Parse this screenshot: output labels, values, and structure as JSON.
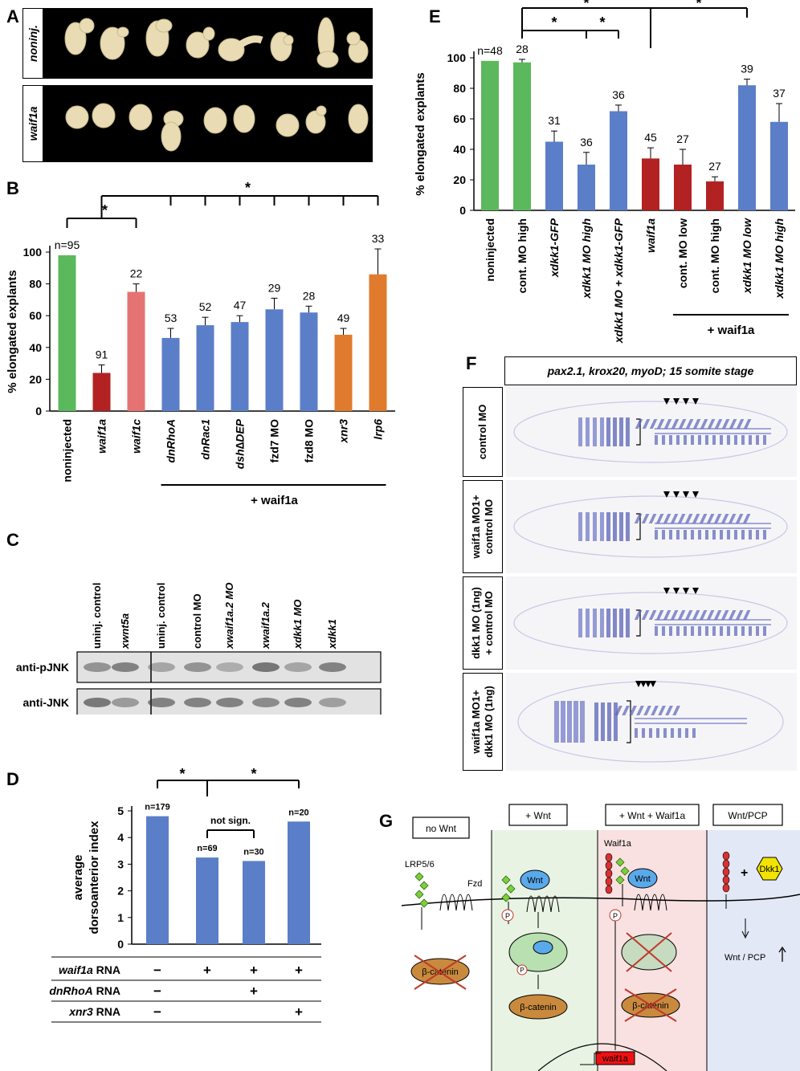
{
  "panels": {
    "A": {
      "label": "A",
      "rows": [
        {
          "label": "noninj."
        },
        {
          "label": "waif1a"
        }
      ]
    },
    "B": {
      "label": "B",
      "chart_data": {
        "type": "bar",
        "ylabel": "% elongated explants",
        "ylim": [
          0,
          100
        ],
        "yticks": [
          0,
          20,
          40,
          60,
          80,
          100
        ],
        "categories": [
          "noninjected",
          "waif1a",
          "waif1c",
          "dnRhoA",
          "dnRac1",
          "dsh∆DEP",
          "fzd7 MO",
          "fzd8 MO",
          "xnr3",
          "lrp6"
        ],
        "values": [
          98,
          24,
          75,
          46,
          54,
          56,
          64,
          62,
          48,
          86
        ],
        "errors": [
          0,
          5,
          5,
          6,
          5,
          4,
          7,
          4,
          4,
          16
        ],
        "counts": [
          "n=95",
          "91",
          "22",
          "53",
          "52",
          "47",
          "29",
          "28",
          "49",
          "33"
        ],
        "colors": [
          "#5cb85c",
          "#b22222",
          "#e57373",
          "#5b7ec8",
          "#5b7ec8",
          "#5b7ec8",
          "#5b7ec8",
          "#5b7ec8",
          "#e07b2e",
          "#e07b2e"
        ],
        "group_label": "+ waif1a",
        "significance": "*"
      }
    },
    "C": {
      "label": "C",
      "lanes": [
        "uninj. control",
        "xwnt5a",
        "uninj. control",
        "control MO",
        "xwaif1a.2 MO",
        "xwaif1a.2",
        "xdkk1 MO",
        "xdkk1"
      ],
      "rows": [
        "anti-pJNK",
        "anti-JNK"
      ]
    },
    "D": {
      "label": "D",
      "chart_data": {
        "type": "bar",
        "ylabel": "average dorsoanterior index",
        "ylim": [
          0,
          5
        ],
        "yticks": [
          0,
          1,
          2,
          3,
          4,
          5
        ],
        "values": [
          4.8,
          3.25,
          3.12,
          4.6
        ],
        "counts": [
          "n=179",
          "n=69",
          "n=30",
          "n=20"
        ],
        "color": "#5b7ec8",
        "significance": "*",
        "not_sign_label": "not sign.",
        "table": [
          {
            "label": "waif1a RNA",
            "cells": [
              "−",
              "+",
              "+",
              "+"
            ]
          },
          {
            "label": "dnRhoA RNA",
            "cells": [
              "−",
              "",
              "+",
              ""
            ]
          },
          {
            "label": "xnr3 RNA",
            "cells": [
              "−",
              "",
              "",
              "+"
            ]
          }
        ]
      }
    },
    "E": {
      "label": "E",
      "chart_data": {
        "type": "bar",
        "ylabel": "% elongated explants",
        "ylim": [
          0,
          100
        ],
        "yticks": [
          0,
          20,
          40,
          60,
          80,
          100
        ],
        "categories": [
          "noninjected",
          "cont. MO high",
          "xdkk1-GFP",
          "xdkk1 MO high",
          "xdkk1 MO + xdkk1-GFP",
          "waif1a",
          "cont. MO low",
          "cont. MO high",
          "xdkk1 MO low",
          "xdkk1 MO high"
        ],
        "values": [
          98,
          97,
          45,
          30,
          65,
          34,
          30,
          19,
          82,
          58
        ],
        "errors": [
          0,
          2,
          7,
          8,
          4,
          7,
          10,
          3,
          4,
          12
        ],
        "counts": [
          "n=48",
          "28",
          "31",
          "36",
          "36",
          "45",
          "27",
          "27",
          "39",
          "37"
        ],
        "colors": [
          "#5cb85c",
          "#5cb85c",
          "#5b7ec8",
          "#5b7ec8",
          "#5b7ec8",
          "#b22222",
          "#b22222",
          "#b22222",
          "#5b7ec8",
          "#5b7ec8"
        ],
        "group_label": "+ waif1a",
        "significance": "*"
      }
    },
    "F": {
      "label": "F",
      "header": "pax2.1, krox20, myoD; 15 somite stage",
      "rows": [
        {
          "line1": "control MO",
          "line2": ""
        },
        {
          "line1": "waif1a MO1+",
          "line2": "control MO"
        },
        {
          "line1": "dkk1 MO (1ng)",
          "line2": "+ control MO"
        },
        {
          "line1": "waif1a MO1+",
          "line2": "dkk1 MO (1ng)"
        }
      ]
    },
    "G": {
      "label": "G",
      "states": [
        "no Wnt",
        "+ Wnt",
        "+ Wnt   + Waif1a",
        "Wnt/PCP"
      ],
      "labels": {
        "lrp": "LRP5/6",
        "fzd": "Fzd",
        "wnt": "Wnt",
        "waif": "Waif1a",
        "dkk": "Dkk1",
        "catenin": "β-catenin",
        "p": "P",
        "gene": "waif1a",
        "plus": "+",
        "pcp": "Wnt / PCP"
      },
      "colors": {
        "green_bg": "#e8f3e4",
        "red_bg": "#f9e1e1",
        "blue_bg": "#e3e8f7",
        "catenin": "#c98a3e",
        "wnt": "#5aa9ea",
        "dkk": "#f2e400",
        "lrp": "#7ccf3a",
        "waif": "#d93030"
      }
    }
  }
}
